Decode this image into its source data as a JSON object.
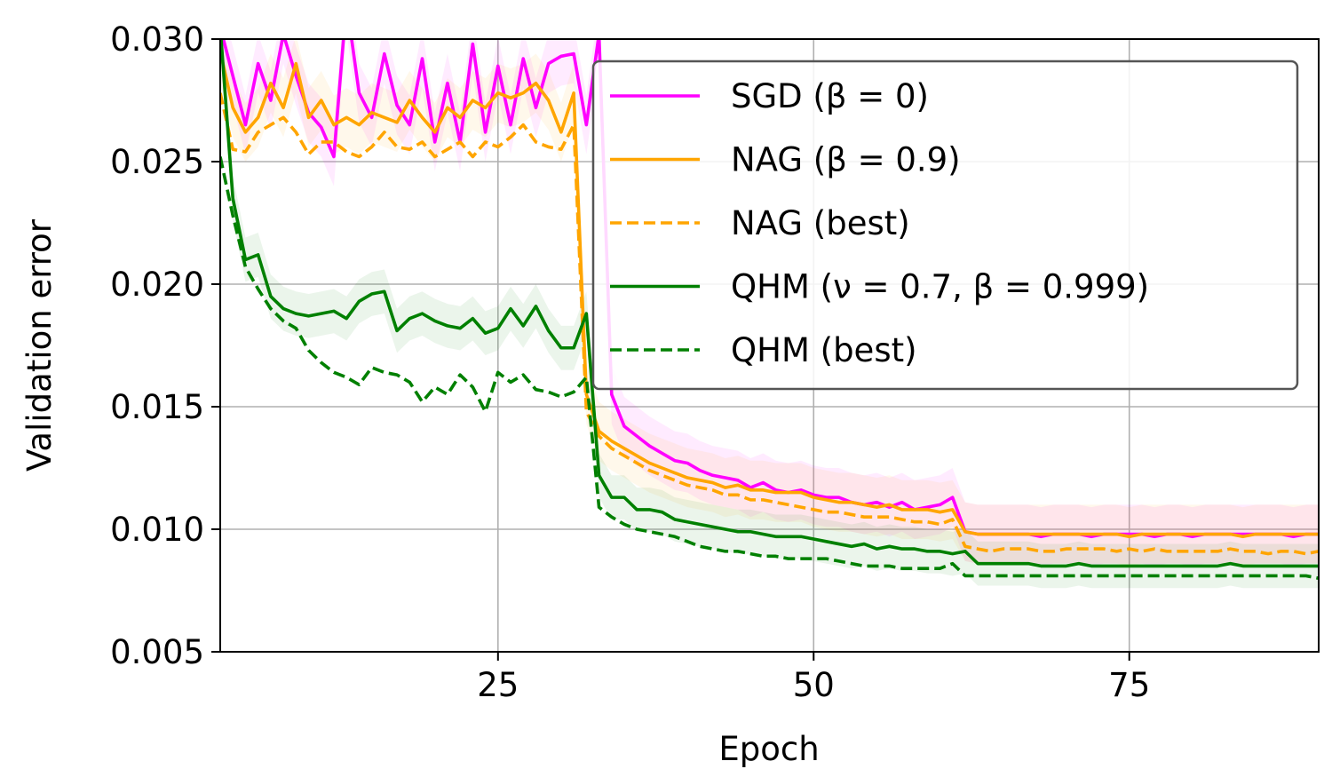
{
  "chart_data": {
    "type": "line",
    "xlabel": "Epoch",
    "ylabel": "Validation error",
    "xlim": [
      3,
      90
    ],
    "ylim": [
      0.005,
      0.03
    ],
    "x_ticks": [
      25,
      50,
      75
    ],
    "x_tick_labels": [
      "25",
      "50",
      "75"
    ],
    "y_ticks": [
      0.005,
      0.01,
      0.015,
      0.02,
      0.025,
      0.03
    ],
    "y_tick_labels": [
      "0.005",
      "0.010",
      "0.015",
      "0.020",
      "0.025",
      "0.030"
    ],
    "grid": true,
    "legend_position": "top-right",
    "series": [
      {
        "name": "SGD (β = 0)",
        "color": "#ff00ff",
        "dash": "solid",
        "band": 0.0012,
        "x": [
          3,
          4,
          5,
          6,
          7,
          8,
          9,
          10,
          11,
          12,
          13,
          14,
          15,
          16,
          17,
          18,
          19,
          20,
          21,
          22,
          23,
          24,
          25,
          26,
          27,
          28,
          29,
          30,
          31,
          32,
          33,
          34,
          35,
          36,
          37,
          38,
          39,
          40,
          41,
          42,
          43,
          44,
          45,
          46,
          47,
          48,
          49,
          50,
          51,
          52,
          53,
          54,
          55,
          56,
          57,
          58,
          59,
          60,
          61,
          62,
          63,
          64,
          65,
          66,
          67,
          68,
          69,
          70,
          71,
          72,
          73,
          74,
          75,
          76,
          77,
          78,
          79,
          80,
          81,
          82,
          83,
          84,
          85,
          86,
          87,
          88,
          89,
          90
        ],
        "values": [
          0.0305,
          0.0285,
          0.0265,
          0.029,
          0.0275,
          0.0302,
          0.0285,
          0.027,
          0.0264,
          0.0252,
          0.0315,
          0.0278,
          0.0268,
          0.0294,
          0.0273,
          0.0265,
          0.0292,
          0.0258,
          0.0282,
          0.0258,
          0.0298,
          0.0262,
          0.0289,
          0.0265,
          0.0292,
          0.0272,
          0.029,
          0.0293,
          0.0294,
          0.0265,
          0.0302,
          0.0155,
          0.0142,
          0.0138,
          0.0134,
          0.0131,
          0.0128,
          0.0127,
          0.0124,
          0.0122,
          0.0121,
          0.012,
          0.0117,
          0.0119,
          0.0116,
          0.0115,
          0.0116,
          0.0114,
          0.0113,
          0.0113,
          0.0111,
          0.011,
          0.0111,
          0.0109,
          0.0111,
          0.0108,
          0.0109,
          0.011,
          0.0113,
          0.0099,
          0.0098,
          0.0098,
          0.0098,
          0.0098,
          0.0098,
          0.0097,
          0.0098,
          0.0098,
          0.0098,
          0.0097,
          0.0098,
          0.0098,
          0.0098,
          0.0098,
          0.0097,
          0.0098,
          0.0098,
          0.0097,
          0.0098,
          0.0098,
          0.0098,
          0.0098,
          0.0098,
          0.0098,
          0.0098,
          0.0097,
          0.0098,
          0.0098
        ]
      },
      {
        "name": "NAG (β = 0.9)",
        "color": "#ffa500",
        "dash": "solid",
        "band": 0.0012,
        "x": [
          3,
          4,
          5,
          6,
          7,
          8,
          9,
          10,
          11,
          12,
          13,
          14,
          15,
          16,
          17,
          18,
          19,
          20,
          21,
          22,
          23,
          24,
          25,
          26,
          27,
          28,
          29,
          30,
          31,
          32,
          33,
          34,
          35,
          36,
          37,
          38,
          39,
          40,
          41,
          42,
          43,
          44,
          45,
          46,
          47,
          48,
          49,
          50,
          51,
          52,
          53,
          54,
          55,
          56,
          57,
          58,
          59,
          60,
          61,
          62,
          63,
          64,
          65,
          66,
          67,
          68,
          69,
          70,
          71,
          72,
          73,
          74,
          75,
          76,
          77,
          78,
          79,
          80,
          81,
          82,
          83,
          84,
          85,
          86,
          87,
          88,
          89,
          90
        ],
        "values": [
          0.0295,
          0.0272,
          0.0262,
          0.0268,
          0.0282,
          0.0272,
          0.029,
          0.0268,
          0.0275,
          0.0265,
          0.0268,
          0.0265,
          0.027,
          0.0268,
          0.0266,
          0.0275,
          0.0268,
          0.0262,
          0.0272,
          0.0268,
          0.0275,
          0.0272,
          0.0278,
          0.0276,
          0.0278,
          0.0282,
          0.0275,
          0.0262,
          0.0278,
          0.0155,
          0.014,
          0.0136,
          0.0133,
          0.013,
          0.0127,
          0.0125,
          0.0123,
          0.0121,
          0.012,
          0.0119,
          0.0117,
          0.0118,
          0.0116,
          0.0116,
          0.0115,
          0.0115,
          0.0115,
          0.0113,
          0.0112,
          0.0111,
          0.0111,
          0.011,
          0.0109,
          0.011,
          0.0108,
          0.0108,
          0.0108,
          0.0107,
          0.0108,
          0.0099,
          0.0098,
          0.0098,
          0.0098,
          0.0098,
          0.0098,
          0.0098,
          0.0098,
          0.0098,
          0.0098,
          0.0098,
          0.0098,
          0.0098,
          0.0097,
          0.0098,
          0.0098,
          0.0098,
          0.0098,
          0.0098,
          0.0098,
          0.0098,
          0.0098,
          0.0097,
          0.0098,
          0.0098,
          0.0098,
          0.0098,
          0.0098,
          0.0098
        ]
      },
      {
        "name": "NAG (best)",
        "color": "#ffa500",
        "dash": "dashed",
        "band": 0,
        "x": [
          3,
          4,
          5,
          6,
          7,
          8,
          9,
          10,
          11,
          12,
          13,
          14,
          15,
          16,
          17,
          18,
          19,
          20,
          21,
          22,
          23,
          24,
          25,
          26,
          27,
          28,
          29,
          30,
          31,
          32,
          33,
          34,
          35,
          36,
          37,
          38,
          39,
          40,
          41,
          42,
          43,
          44,
          45,
          46,
          47,
          48,
          49,
          50,
          51,
          52,
          53,
          54,
          55,
          56,
          57,
          58,
          59,
          60,
          61,
          62,
          63,
          64,
          65,
          66,
          67,
          68,
          69,
          70,
          71,
          72,
          73,
          74,
          75,
          76,
          77,
          78,
          79,
          80,
          81,
          82,
          83,
          84,
          85,
          86,
          87,
          88,
          89,
          90
        ],
        "values": [
          0.0278,
          0.0255,
          0.0254,
          0.0262,
          0.0265,
          0.0268,
          0.0262,
          0.0253,
          0.0258,
          0.0258,
          0.0254,
          0.0252,
          0.0256,
          0.0262,
          0.0256,
          0.0255,
          0.0258,
          0.0252,
          0.0255,
          0.0258,
          0.0252,
          0.0258,
          0.0256,
          0.026,
          0.0265,
          0.0258,
          0.0256,
          0.0255,
          0.0265,
          0.0148,
          0.0138,
          0.0133,
          0.013,
          0.0127,
          0.0124,
          0.0122,
          0.012,
          0.0118,
          0.0117,
          0.0116,
          0.0114,
          0.0114,
          0.0112,
          0.0112,
          0.0111,
          0.011,
          0.0109,
          0.0108,
          0.0107,
          0.0107,
          0.0106,
          0.0105,
          0.0105,
          0.0105,
          0.0104,
          0.0103,
          0.0103,
          0.0102,
          0.0104,
          0.0093,
          0.0092,
          0.0091,
          0.0092,
          0.0092,
          0.0092,
          0.0091,
          0.0091,
          0.0092,
          0.0092,
          0.0092,
          0.0092,
          0.0091,
          0.0092,
          0.0091,
          0.0092,
          0.0091,
          0.0091,
          0.0091,
          0.0091,
          0.0091,
          0.0092,
          0.0091,
          0.0091,
          0.009,
          0.0091,
          0.0091,
          0.009,
          0.0091
        ]
      },
      {
        "name": "QHM (ν = 0.7, β = 0.999)",
        "color": "#008000",
        "dash": "solid",
        "band": 0.0009,
        "x": [
          3,
          4,
          5,
          6,
          7,
          8,
          9,
          10,
          11,
          12,
          13,
          14,
          15,
          16,
          17,
          18,
          19,
          20,
          21,
          22,
          23,
          24,
          25,
          26,
          27,
          28,
          29,
          30,
          31,
          32,
          33,
          34,
          35,
          36,
          37,
          38,
          39,
          40,
          41,
          42,
          43,
          44,
          45,
          46,
          47,
          48,
          49,
          50,
          51,
          52,
          53,
          54,
          55,
          56,
          57,
          58,
          59,
          60,
          61,
          62,
          63,
          64,
          65,
          66,
          67,
          68,
          69,
          70,
          71,
          72,
          73,
          74,
          75,
          76,
          77,
          78,
          79,
          80,
          81,
          82,
          83,
          84,
          85,
          86,
          87,
          88,
          89,
          90
        ],
        "values": [
          0.0305,
          0.0235,
          0.021,
          0.0212,
          0.0195,
          0.019,
          0.0188,
          0.0187,
          0.0188,
          0.0189,
          0.0186,
          0.0193,
          0.0196,
          0.0197,
          0.0181,
          0.0186,
          0.0188,
          0.0185,
          0.0183,
          0.0182,
          0.0186,
          0.018,
          0.0182,
          0.019,
          0.0183,
          0.0191,
          0.0181,
          0.0174,
          0.0174,
          0.0188,
          0.0122,
          0.0113,
          0.0113,
          0.0108,
          0.0108,
          0.0107,
          0.0104,
          0.0103,
          0.0102,
          0.0101,
          0.01,
          0.0099,
          0.0099,
          0.0098,
          0.0097,
          0.0097,
          0.0097,
          0.0096,
          0.0095,
          0.0094,
          0.0093,
          0.0094,
          0.0092,
          0.0093,
          0.0092,
          0.0092,
          0.0091,
          0.0091,
          0.009,
          0.0091,
          0.0086,
          0.0086,
          0.0086,
          0.0086,
          0.0086,
          0.0085,
          0.0085,
          0.0085,
          0.0086,
          0.0085,
          0.0085,
          0.0085,
          0.0085,
          0.0085,
          0.0085,
          0.0085,
          0.0085,
          0.0085,
          0.0085,
          0.0085,
          0.0086,
          0.0085,
          0.0085,
          0.0085,
          0.0085,
          0.0085,
          0.0085,
          0.0085
        ]
      },
      {
        "name": "QHM (best)",
        "color": "#008000",
        "dash": "dashed",
        "band": 0,
        "x": [
          3,
          4,
          5,
          6,
          7,
          8,
          9,
          10,
          11,
          12,
          13,
          14,
          15,
          16,
          17,
          18,
          19,
          20,
          21,
          22,
          23,
          24,
          25,
          26,
          27,
          28,
          29,
          30,
          31,
          32,
          33,
          34,
          35,
          36,
          37,
          38,
          39,
          40,
          41,
          42,
          43,
          44,
          45,
          46,
          47,
          48,
          49,
          50,
          51,
          52,
          53,
          54,
          55,
          56,
          57,
          58,
          59,
          60,
          61,
          62,
          63,
          64,
          65,
          66,
          67,
          68,
          69,
          70,
          71,
          72,
          73,
          74,
          75,
          76,
          77,
          78,
          79,
          80,
          81,
          82,
          83,
          84,
          85,
          86,
          87,
          88,
          89,
          90
        ],
        "values": [
          0.0252,
          0.0228,
          0.0207,
          0.0198,
          0.019,
          0.0185,
          0.0182,
          0.0173,
          0.0168,
          0.0164,
          0.0162,
          0.0159,
          0.0166,
          0.0164,
          0.0163,
          0.016,
          0.0152,
          0.0158,
          0.0155,
          0.0163,
          0.0158,
          0.0148,
          0.0164,
          0.016,
          0.0163,
          0.0157,
          0.0156,
          0.0154,
          0.0156,
          0.0162,
          0.0109,
          0.0105,
          0.0102,
          0.01,
          0.0099,
          0.0098,
          0.0097,
          0.0095,
          0.0093,
          0.0092,
          0.0091,
          0.0091,
          0.009,
          0.0089,
          0.0089,
          0.0088,
          0.0088,
          0.0088,
          0.0088,
          0.0087,
          0.0086,
          0.0085,
          0.0085,
          0.0085,
          0.0084,
          0.0084,
          0.0084,
          0.0084,
          0.0086,
          0.0081,
          0.0081,
          0.0081,
          0.0081,
          0.0081,
          0.0081,
          0.0081,
          0.0081,
          0.0081,
          0.0081,
          0.0081,
          0.0081,
          0.0081,
          0.0081,
          0.0081,
          0.0081,
          0.0081,
          0.0081,
          0.0081,
          0.0081,
          0.0081,
          0.0081,
          0.0081,
          0.0081,
          0.0081,
          0.0081,
          0.0081,
          0.0081,
          0.008
        ]
      }
    ]
  }
}
